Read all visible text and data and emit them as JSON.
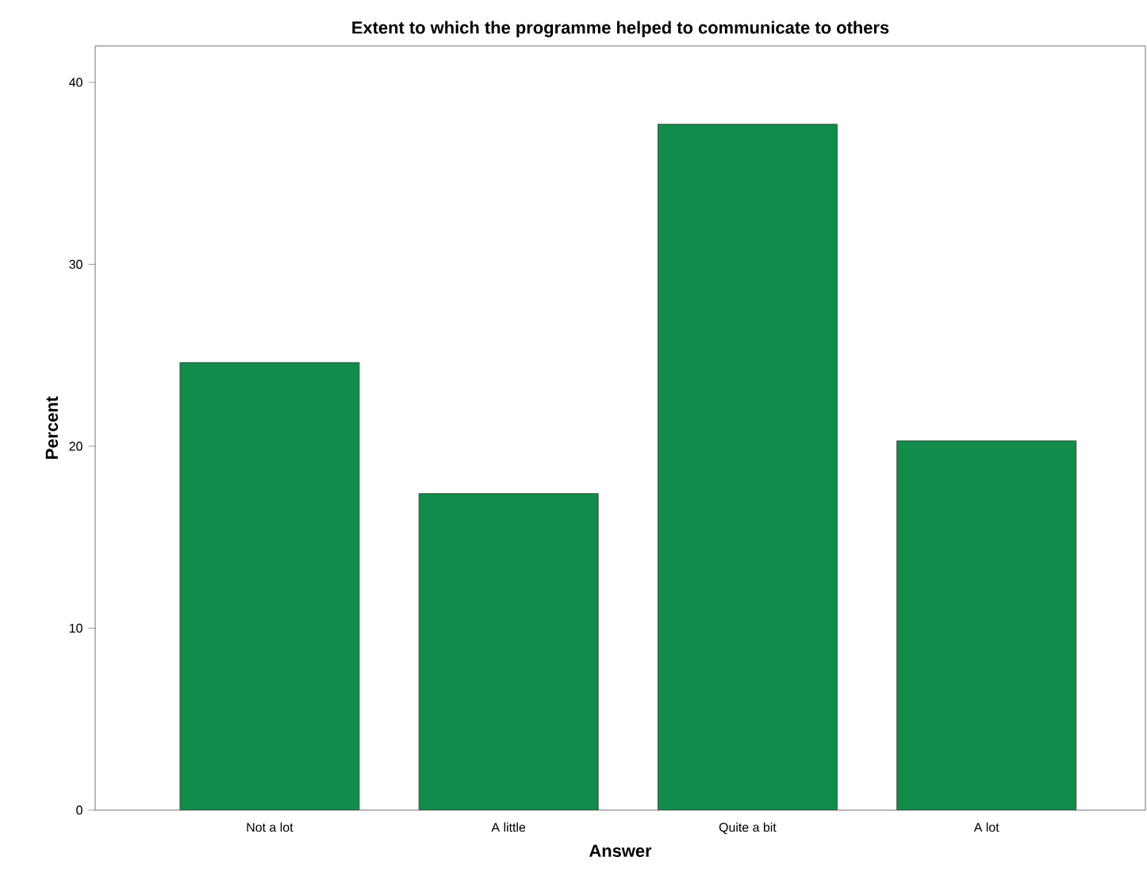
{
  "chart_data": {
    "type": "bar",
    "title": "Extent to which the programme helped to communicate to others",
    "xlabel": "Answer",
    "ylabel": "Percent",
    "categories": [
      "Not a lot",
      "A little",
      "Quite a bit",
      "A lot"
    ],
    "values": [
      24.6,
      17.4,
      37.7,
      20.3
    ],
    "color": "#118c4a",
    "ylim": [
      0,
      42
    ],
    "yticks": [
      0,
      10,
      20,
      30,
      40
    ]
  }
}
